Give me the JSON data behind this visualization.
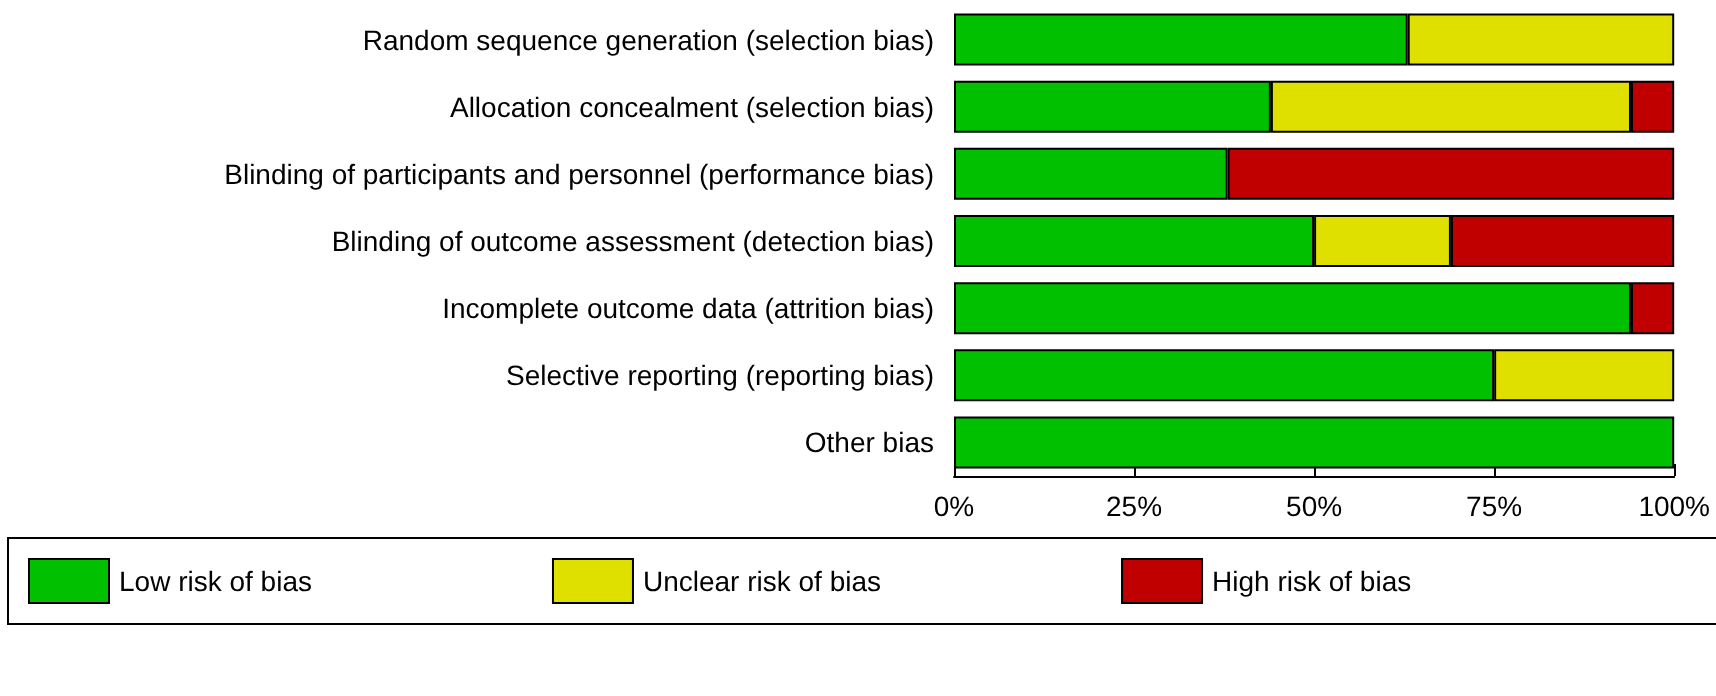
{
  "chart_data": {
    "type": "bar",
    "orientation": "horizontal",
    "stacked": true,
    "categories": [
      "Random sequence generation (selection bias)",
      "Allocation concealment (selection bias)",
      "Blinding of participants and personnel (performance bias)",
      "Blinding of outcome assessment (detection bias)",
      "Incomplete outcome data (attrition bias)",
      "Selective reporting (reporting bias)",
      "Other bias"
    ],
    "series": [
      {
        "name": "Low risk of bias",
        "color": "#00c000",
        "values": [
          63,
          44,
          38,
          50,
          94,
          75,
          100
        ]
      },
      {
        "name": "Unclear risk of bias",
        "color": "#e0e000",
        "values": [
          37,
          50,
          null,
          19,
          null,
          25,
          null
        ]
      },
      {
        "name": "High risk of bias",
        "color": "#c00000",
        "values": [
          null,
          6,
          62,
          31,
          6,
          null,
          null
        ]
      }
    ],
    "xlim": [
      0,
      100
    ],
    "xticks": [
      {
        "value": 0,
        "label": "0%"
      },
      {
        "value": 25,
        "label": "25%"
      },
      {
        "value": 50,
        "label": "50%"
      },
      {
        "value": 75,
        "label": "75%"
      },
      {
        "value": 100,
        "label": "100%"
      }
    ],
    "grid": false,
    "legend": "bottom"
  }
}
